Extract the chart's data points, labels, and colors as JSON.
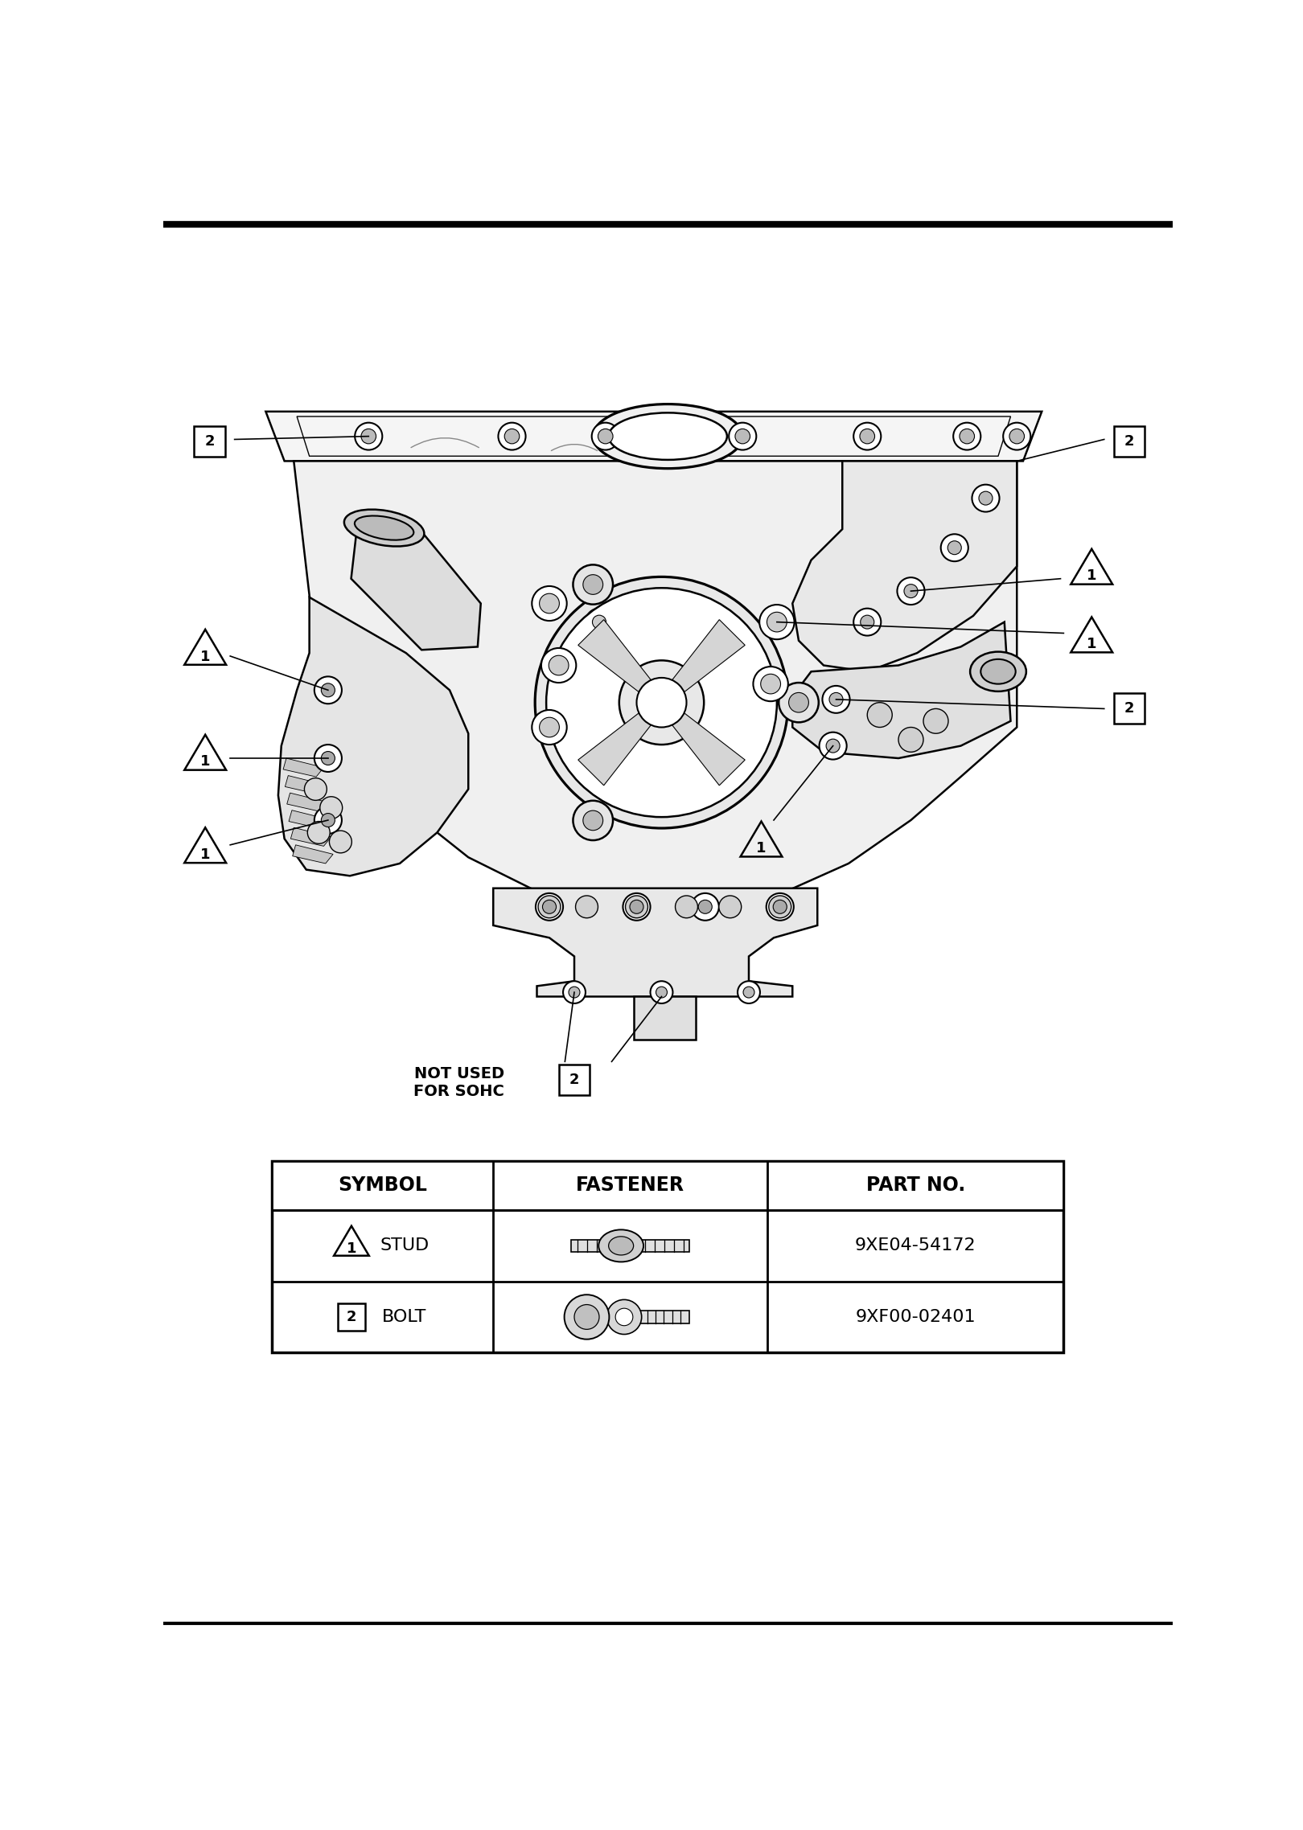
{
  "bg_color": "#ffffff",
  "table_headers": [
    "SYMBOL",
    "FASTENER",
    "PART NO."
  ],
  "row1_label": "STUD",
  "row1_part": "9XE04-54172",
  "row2_label": "BOLT",
  "row2_part": "9XF00-02401",
  "not_used_label": "NOT USED\nFOR SOHC"
}
